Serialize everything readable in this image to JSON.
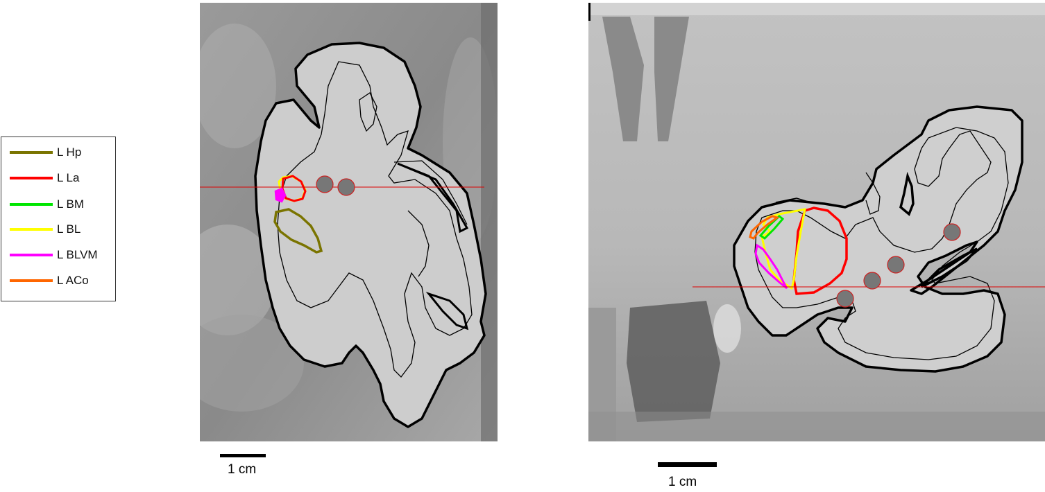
{
  "legend": {
    "items": [
      {
        "label": "L Hp",
        "color": "#7a7400"
      },
      {
        "label": "L La",
        "color": "#ff0000"
      },
      {
        "label": "L BM",
        "color": "#00e600"
      },
      {
        "label": "L BL",
        "color": "#ffff00"
      },
      {
        "label": "L BLVM",
        "color": "#ff00ff"
      },
      {
        "label": "L ACo",
        "color": "#ff6600"
      }
    ]
  },
  "scale_left": {
    "label": "1 cm"
  },
  "scale_right": {
    "label": "1 cm"
  },
  "colors": {
    "background_mri": "#8f8f8f",
    "brain_fill": "#cdcdcd",
    "outline": "#000000",
    "electrode": "#777777",
    "electrode_edge": "#cc2222",
    "crosshair": "#dd0000"
  }
}
